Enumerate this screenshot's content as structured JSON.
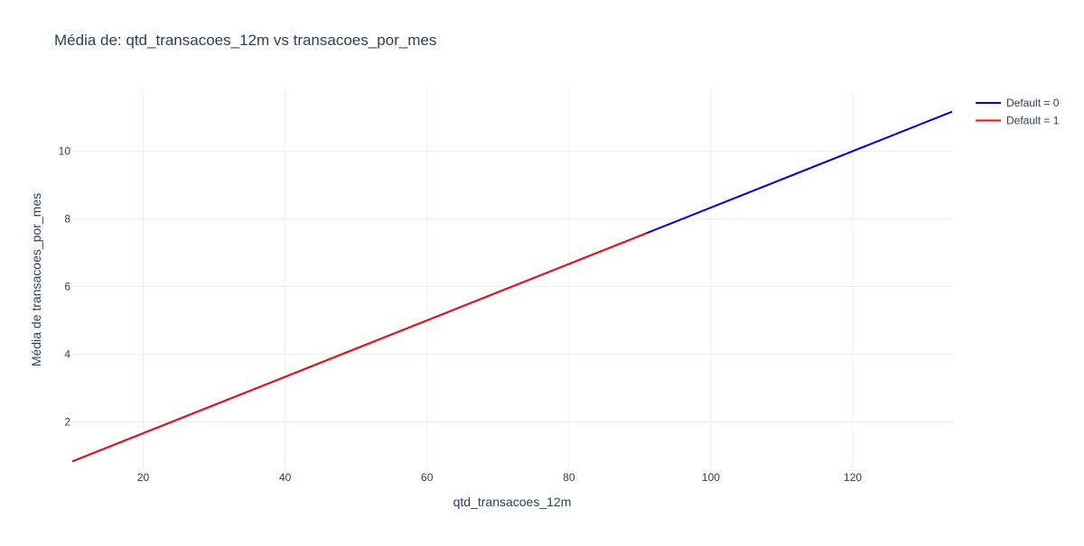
{
  "chart_data": {
    "type": "line",
    "title": "Média de: qtd_transacoes_12m vs transacoes_por_mes",
    "xlabel": "qtd_transacoes_12m",
    "ylabel": "Média de transacoes_por_mes",
    "xlim": [
      10,
      134
    ],
    "ylim": [
      0.6,
      11.8
    ],
    "x_ticks": [
      20,
      40,
      60,
      80,
      100,
      120
    ],
    "y_ticks": [
      2,
      4,
      6,
      8,
      10
    ],
    "grid": true,
    "legend_position": "top-right",
    "series": [
      {
        "name": "Default = 0",
        "color": "#0000dd",
        "x": [
          10,
          134
        ],
        "y": [
          0.833,
          11.167
        ]
      },
      {
        "name": "Default = 1",
        "color": "#ee1111",
        "x": [
          10,
          91
        ],
        "y": [
          0.833,
          7.583
        ]
      }
    ]
  }
}
